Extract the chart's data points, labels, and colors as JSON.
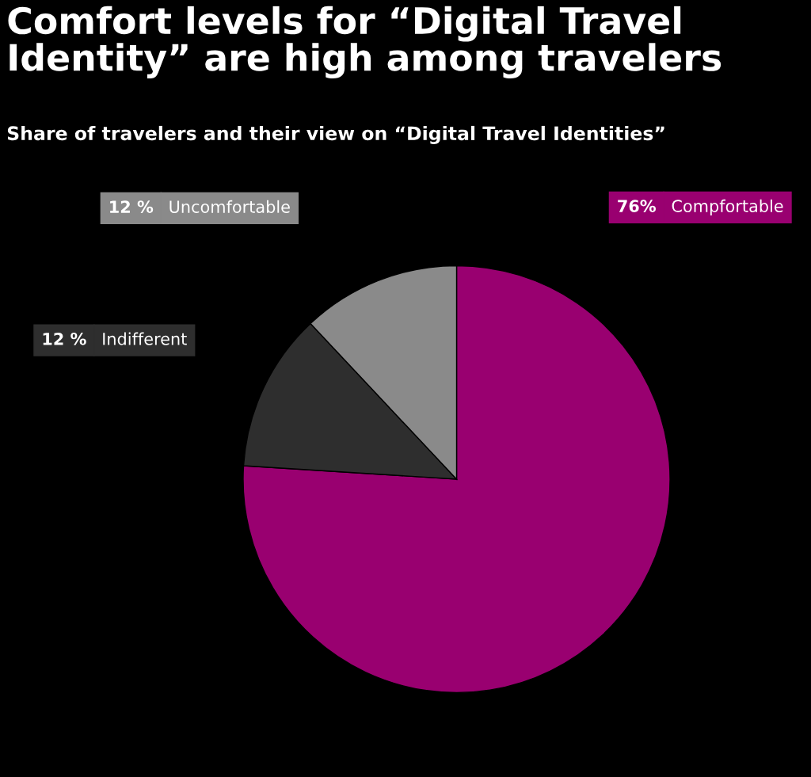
{
  "chart_data": {
    "type": "pie",
    "title": "Comfort levels for “Digital Travel Identity” are high among travelers",
    "subtitle": "Share of travelers and their view on “Digital Travel Identities”",
    "categories": [
      "Compfortable",
      "Indifferent",
      "Uncomfortable"
    ],
    "values": [
      76,
      12,
      12
    ],
    "value_labels": [
      "76%",
      "12 %",
      "12 %"
    ],
    "colors": [
      "#990070",
      "#2e2e2e",
      "#8a8a8a"
    ],
    "legend": "top"
  }
}
